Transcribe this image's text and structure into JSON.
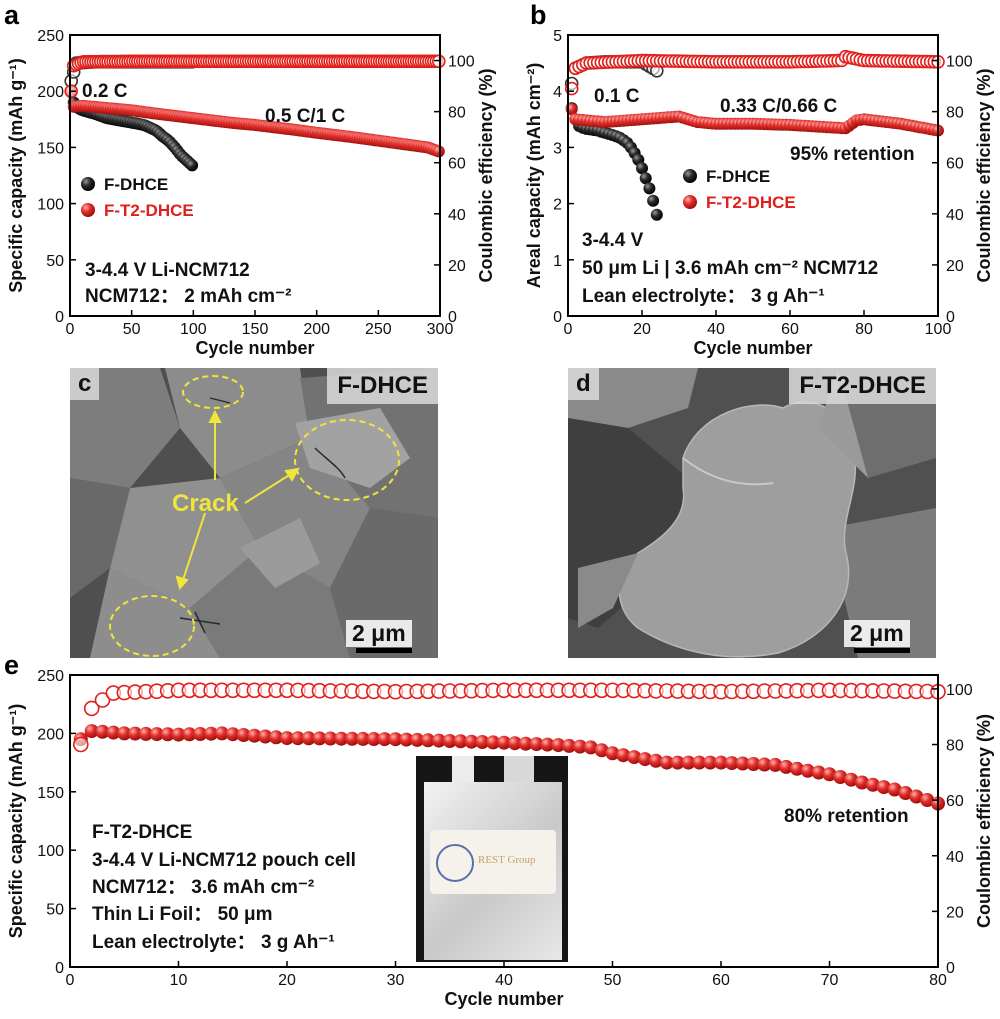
{
  "colors": {
    "f_dhce": "#1a1a1a",
    "f_t2_dhce": "#e0201c"
  },
  "chart_data": [
    {
      "panel": "a",
      "type": "scatter",
      "xlabel": "Cycle number",
      "ylabel": "Specific capacity (mAh g⁻¹)",
      "y2label": "Coulombic efficiency (%)",
      "xlim": [
        0,
        300
      ],
      "ylim": [
        0,
        250
      ],
      "y2lim": [
        0,
        110
      ],
      "xticks": [
        0,
        50,
        100,
        150,
        200,
        250,
        300
      ],
      "yticks": [
        0,
        50,
        100,
        150,
        200,
        250
      ],
      "y2ticks": [
        0,
        20,
        40,
        60,
        80,
        100
      ],
      "annotations": [
        "0.2 C",
        "0.5 C/1 C",
        "3-4.4 V Li-NCM712",
        "NCM712： 2 mAh cm⁻²"
      ],
      "legend": [
        "F-DHCE",
        "F-T2-DHCE"
      ],
      "series": [
        {
          "name": "F-DHCE",
          "axis": "left",
          "points": [
            [
              1,
              199
            ],
            [
              2,
              192
            ],
            [
              5,
              186
            ],
            [
              10,
              183
            ],
            [
              20,
              180
            ],
            [
              30,
              176
            ],
            [
              40,
              174
            ],
            [
              50,
              172
            ],
            [
              60,
              170
            ],
            [
              70,
              165
            ],
            [
              75,
              160
            ],
            [
              80,
              156
            ],
            [
              85,
              150
            ],
            [
              90,
              143
            ],
            [
              95,
              138
            ],
            [
              100,
              133
            ]
          ]
        },
        {
          "name": "F-T2-DHCE",
          "axis": "left",
          "points": [
            [
              1,
              200
            ],
            [
              2,
              186
            ],
            [
              10,
              187
            ],
            [
              30,
              185
            ],
            [
              50,
              183
            ],
            [
              70,
              180
            ],
            [
              100,
              176
            ],
            [
              130,
              172
            ],
            [
              150,
              170
            ],
            [
              180,
              166
            ],
            [
              200,
              163
            ],
            [
              230,
              159
            ],
            [
              250,
              156
            ],
            [
              270,
              153
            ],
            [
              290,
              150
            ],
            [
              300,
              146
            ]
          ]
        },
        {
          "name": "F-DHCE",
          "axis": "right",
          "points": [
            [
              1,
              92
            ],
            [
              5,
              99
            ],
            [
              20,
              99.5
            ],
            [
              50,
              99.5
            ],
            [
              80,
              99.5
            ],
            [
              100,
              99.5
            ]
          ]
        },
        {
          "name": "F-T2-DHCE",
          "axis": "right",
          "points": [
            [
              1,
              88
            ],
            [
              3,
              98
            ],
            [
              10,
              99.5
            ],
            [
              50,
              99.7
            ],
            [
              100,
              99.7
            ],
            [
              150,
              99.7
            ],
            [
              200,
              99.7
            ],
            [
              250,
              99.7
            ],
            [
              300,
              99.7
            ]
          ]
        }
      ]
    },
    {
      "panel": "b",
      "type": "scatter",
      "xlabel": "Cycle number",
      "ylabel": "Areal capacity (mAh cm⁻²)",
      "y2label": "Coulombic efficiency (%)",
      "xlim": [
        0,
        100
      ],
      "ylim": [
        0,
        5
      ],
      "y2lim": [
        0,
        110
      ],
      "xticks": [
        0,
        20,
        40,
        60,
        80,
        100
      ],
      "yticks": [
        0,
        1,
        2,
        3,
        4,
        5
      ],
      "y2ticks": [
        0,
        20,
        40,
        60,
        80,
        100
      ],
      "annotations": [
        "0.1 C",
        "0.33 C/0.66 C",
        "95% retention",
        "3-4.4 V",
        "50 μm Li | 3.6 mAh cm⁻² NCM712",
        "Lean electrolyte： 3 g Ah⁻¹"
      ],
      "legend": [
        "F-DHCE",
        "F-T2-DHCE"
      ],
      "series": [
        {
          "name": "F-DHCE",
          "axis": "left",
          "points": [
            [
              1,
              3.7
            ],
            [
              2,
              3.5
            ],
            [
              3,
              3.38
            ],
            [
              4,
              3.35
            ],
            [
              5,
              3.33
            ],
            [
              6,
              3.32
            ],
            [
              7,
              3.31
            ],
            [
              8,
              3.3
            ],
            [
              9,
              3.28
            ],
            [
              10,
              3.26
            ],
            [
              11,
              3.24
            ],
            [
              12,
              3.22
            ],
            [
              13,
              3.2
            ],
            [
              14,
              3.17
            ],
            [
              15,
              3.13
            ],
            [
              16,
              3.08
            ],
            [
              17,
              3.0
            ],
            [
              18,
              2.9
            ],
            [
              19,
              2.78
            ],
            [
              20,
              2.63
            ],
            [
              21,
              2.45
            ],
            [
              22,
              2.27
            ],
            [
              23,
              2.05
            ],
            [
              24,
              1.8
            ]
          ]
        },
        {
          "name": "F-T2-DHCE",
          "axis": "left",
          "points": [
            [
              1,
              3.68
            ],
            [
              2,
              3.5
            ],
            [
              5,
              3.48
            ],
            [
              10,
              3.45
            ],
            [
              20,
              3.5
            ],
            [
              30,
              3.55
            ],
            [
              35,
              3.45
            ],
            [
              40,
              3.42
            ],
            [
              50,
              3.42
            ],
            [
              60,
              3.4
            ],
            [
              70,
              3.36
            ],
            [
              75,
              3.34
            ],
            [
              78,
              3.48
            ],
            [
              80,
              3.5
            ],
            [
              85,
              3.46
            ],
            [
              90,
              3.42
            ],
            [
              95,
              3.36
            ],
            [
              100,
              3.3
            ]
          ]
        },
        {
          "name": "F-DHCE",
          "axis": "right",
          "points": [
            [
              1,
              91
            ],
            [
              2,
              97
            ],
            [
              5,
              99
            ],
            [
              10,
              99.5
            ],
            [
              15,
              99.5
            ],
            [
              20,
              99.5
            ],
            [
              24,
              96
            ]
          ]
        },
        {
          "name": "F-T2-DHCE",
          "axis": "right",
          "points": [
            [
              1,
              89
            ],
            [
              2,
              97
            ],
            [
              5,
              99
            ],
            [
              20,
              100
            ],
            [
              40,
              99.5
            ],
            [
              60,
              99.5
            ],
            [
              74,
              100
            ],
            [
              75,
              101.5
            ],
            [
              80,
              100
            ],
            [
              100,
              99.5
            ]
          ]
        }
      ]
    },
    {
      "panel": "e",
      "type": "scatter",
      "xlabel": "Cycle number",
      "ylabel": "Specific capacity (mAh g⁻¹)",
      "y2label": "Coulombic efficiency (%)",
      "xlim": [
        0,
        80
      ],
      "ylim": [
        0,
        250
      ],
      "y2lim": [
        0,
        105
      ],
      "xticks": [
        0,
        10,
        20,
        30,
        40,
        50,
        60,
        70,
        80
      ],
      "yticks": [
        0,
        50,
        100,
        150,
        200,
        250
      ],
      "y2ticks": [
        0,
        20,
        40,
        60,
        80,
        100
      ],
      "annotations": [
        "F-T2-DHCE",
        "3-4.4 V  Li-NCM712 pouch cell",
        "NCM712： 3.6 mAh cm⁻²",
        "Thin Li Foil： 50 μm",
        "Lean electrolyte： 3 g Ah⁻¹",
        "80% retention"
      ],
      "series": [
        {
          "name": "F-T2-DHCE",
          "axis": "left",
          "points": [
            [
              1,
              195
            ],
            [
              2,
              202
            ],
            [
              5,
              200
            ],
            [
              10,
              199
            ],
            [
              14,
              200
            ],
            [
              20,
              196
            ],
            [
              30,
              195
            ],
            [
              40,
              192
            ],
            [
              45,
              190
            ],
            [
              48,
              188
            ],
            [
              50,
              183
            ],
            [
              53,
              178
            ],
            [
              55,
              175
            ],
            [
              60,
              175
            ],
            [
              65,
              173
            ],
            [
              68,
              168
            ],
            [
              70,
              165
            ],
            [
              73,
              158
            ],
            [
              76,
              152
            ],
            [
              78,
              146
            ],
            [
              80,
              140
            ]
          ]
        },
        {
          "name": "F-T2-DHCE",
          "axis": "right",
          "points": [
            [
              1,
              80
            ],
            [
              2,
              93
            ],
            [
              3,
              96
            ],
            [
              4,
              98.5
            ],
            [
              10,
              99.5
            ],
            [
              20,
              99.5
            ],
            [
              30,
              99
            ],
            [
              40,
              99.5
            ],
            [
              50,
              99.5
            ],
            [
              60,
              99
            ],
            [
              70,
              99.5
            ],
            [
              80,
              99
            ]
          ]
        }
      ]
    }
  ],
  "panels": {
    "a": {
      "letter": "a"
    },
    "b": {
      "letter": "b"
    },
    "c": {
      "letter": "c",
      "name": "F-DHCE",
      "crack": "Crack",
      "scale": "2 μm"
    },
    "d": {
      "letter": "d",
      "name": "F-T2-DHCE",
      "scale": "2 μm"
    },
    "e": {
      "letter": "e",
      "photo_label": "REST Group"
    }
  }
}
